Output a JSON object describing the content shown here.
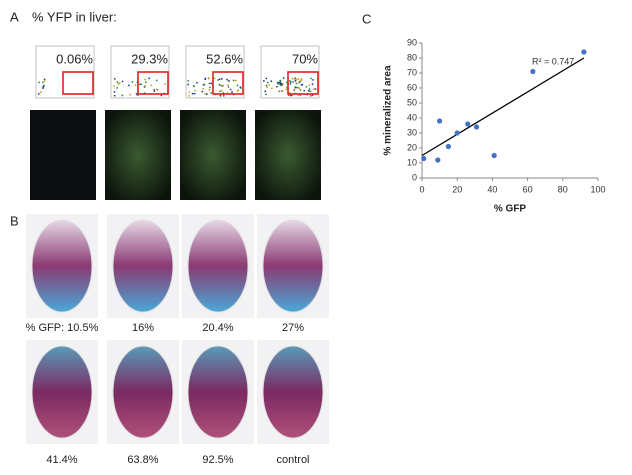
{
  "panel_a": {
    "letter": "A",
    "title": "% YFP in liver:",
    "flow_labels": [
      "0.06%",
      "29.3%",
      "52.6%",
      "70%"
    ]
  },
  "panel_b": {
    "letter": "B",
    "labels": [
      "% GFP: 10.5%",
      "16%",
      "20.4%",
      "27%",
      "41.4%",
      "63.8%",
      "92.5%",
      "control"
    ]
  },
  "panel_c": {
    "letter": "C"
  },
  "chart_data": {
    "type": "scatter",
    "x_label": "% GFP",
    "y_label": "% mineralized area",
    "x": [
      1,
      9,
      10,
      15,
      20,
      26,
      31,
      41,
      63,
      92
    ],
    "values": [
      13,
      12,
      38,
      21,
      30,
      36,
      34,
      15,
      71,
      84
    ],
    "color": "#4472c4",
    "trendline": {
      "x": [
        0,
        92
      ],
      "y": [
        15,
        80
      ],
      "color": "#000000"
    },
    "annotation": "R² = 0.747",
    "xlim": [
      0,
      100
    ],
    "xticks": [
      0,
      20,
      40,
      60,
      80,
      100
    ],
    "ylim": [
      0,
      90
    ],
    "yticks": [
      0,
      10,
      20,
      30,
      40,
      50,
      60,
      70,
      80,
      90
    ]
  }
}
